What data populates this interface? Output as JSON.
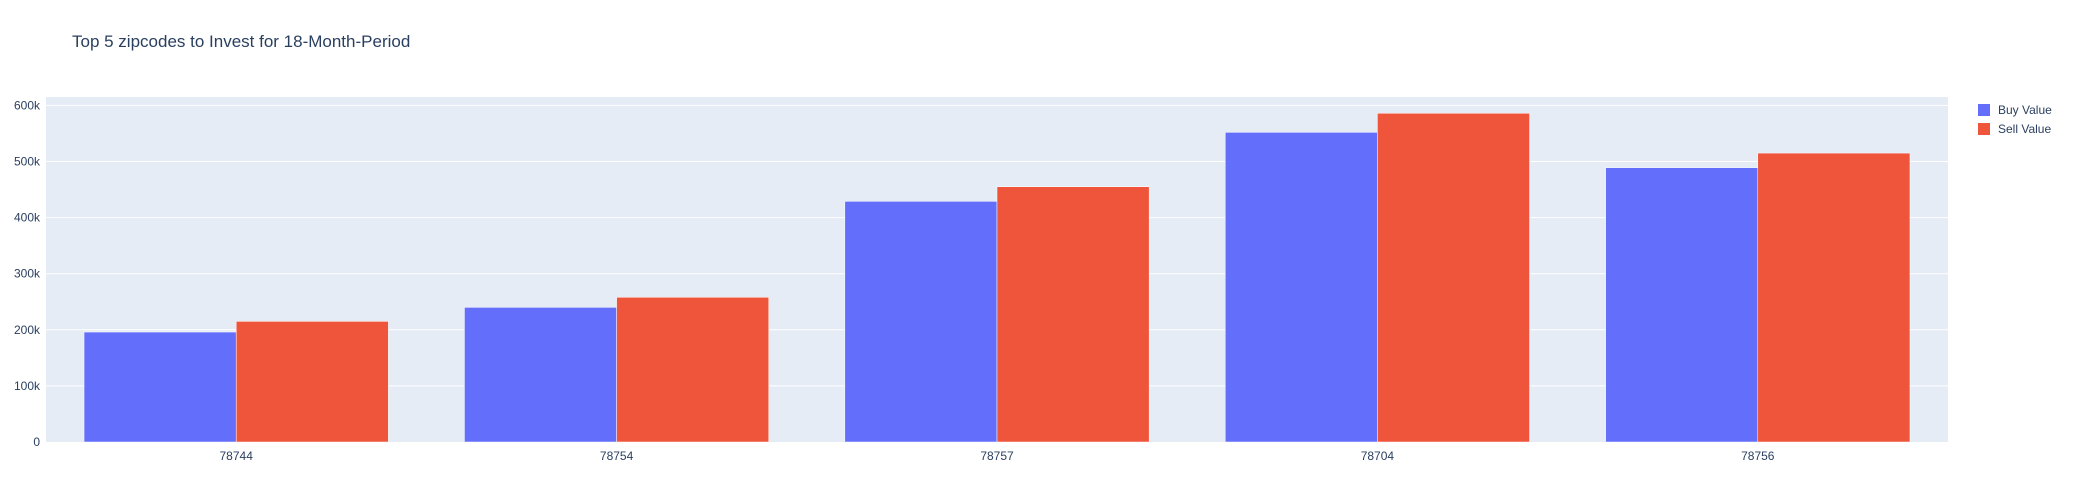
{
  "chart_data": {
    "type": "bar",
    "title": "Top 5 zipcodes to Invest for 18-Month-Period",
    "xlabel": "",
    "ylabel": "",
    "categories": [
      "78744",
      "78754",
      "78757",
      "78704",
      "78756"
    ],
    "series": [
      {
        "name": "Buy Value",
        "color": "#636efa",
        "values": [
          196000,
          240000,
          429000,
          552000,
          489000
        ]
      },
      {
        "name": "Sell Value",
        "color": "#ef553b",
        "values": [
          215000,
          258000,
          455000,
          586000,
          515000
        ]
      }
    ],
    "ylim": [
      0,
      615000
    ],
    "yticks": [
      0,
      100000,
      200000,
      300000,
      400000,
      500000,
      600000
    ],
    "ytick_labels": [
      "0",
      "100k",
      "200k",
      "300k",
      "400k",
      "500k",
      "600k"
    ],
    "grid": true,
    "legend": "top-right"
  }
}
